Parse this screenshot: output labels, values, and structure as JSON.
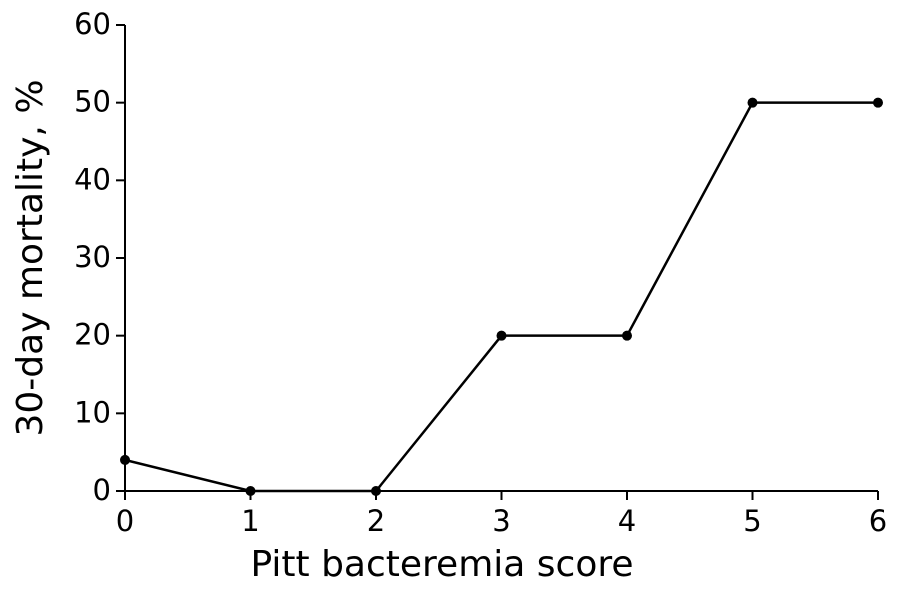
{
  "chart_data": {
    "type": "line",
    "x_label": "Pitt bacteremia score",
    "y_label": "30-day mortality, %",
    "x": [
      0,
      1,
      2,
      3,
      4,
      5,
      6
    ],
    "values": [
      4,
      0,
      0,
      20,
      20,
      50,
      50
    ],
    "color": "#000000",
    "xlim": [
      0,
      6
    ],
    "xticks": [
      0,
      1,
      2,
      3,
      4,
      5,
      6
    ],
    "ylim": [
      0,
      60
    ],
    "yticks": [
      0,
      10,
      20,
      30,
      40,
      50,
      60
    ],
    "grid": false
  }
}
